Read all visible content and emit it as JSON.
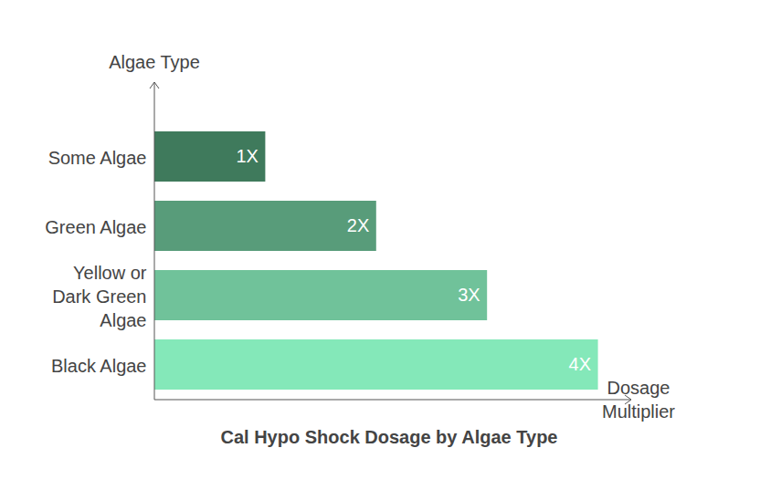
{
  "chart_data": {
    "type": "bar",
    "orientation": "horizontal",
    "title": "Cal Hypo Shock Dosage by Algae Type",
    "x_label": "Dosage Multiplier",
    "y_label": "Algae Type",
    "categories": [
      "Some Algae",
      "Green Algae",
      "Yellow or Dark Green Algae",
      "Black Algae"
    ],
    "values": [
      1,
      2,
      3,
      4
    ],
    "value_labels": [
      "1X",
      "2X",
      "3X",
      "4X"
    ],
    "colors": [
      "#3f7a5c",
      "#589c7a",
      "#70c29a",
      "#84e8b9"
    ],
    "xlim": [
      0,
      4.3
    ],
    "xticks": [],
    "data_labels": true,
    "tick_labels": "y",
    "grid": false
  }
}
